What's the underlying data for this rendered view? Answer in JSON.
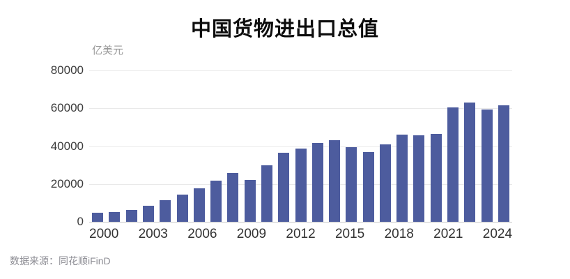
{
  "title": "中国货物进出口总值",
  "unit_label": "亿美元",
  "source": "数据来源：同花顺iFinD",
  "colors": {
    "bar": "#4d5c9e",
    "gridline": "#e9e9e9",
    "axis_line": "#c9c9c9",
    "title_text": "#0d0d0d",
    "tick_text": "#3c3c3c",
    "unit_text": "#999999",
    "source_text": "#8d8d94",
    "background": "#ffffff"
  },
  "chart_data": {
    "type": "bar",
    "title": "中国货物进出口总值",
    "xlabel": "",
    "ylabel": "亿美元",
    "categories": [
      2000,
      2001,
      2002,
      2003,
      2004,
      2005,
      2006,
      2007,
      2008,
      2009,
      2010,
      2011,
      2012,
      2013,
      2014,
      2015,
      2016,
      2017,
      2018,
      2019,
      2020,
      2021,
      2022,
      2023,
      2024
    ],
    "values": [
      4743,
      5097,
      6208,
      8510,
      11546,
      14219,
      17604,
      21766,
      25633,
      22075,
      29740,
      36419,
      38671,
      41590,
      43030,
      39530,
      36856,
      41045,
      46224,
      45761,
      46463,
      60515,
      63096,
      59368,
      61623
    ],
    "ylim": [
      0,
      80000
    ],
    "yticks": [
      0,
      20000,
      40000,
      60000,
      80000
    ],
    "xtick_labels": [
      "2000",
      "2003",
      "2006",
      "2009",
      "2012",
      "2015",
      "2018",
      "2021",
      "2024"
    ],
    "xtick_step": 3,
    "grid": "horizontal",
    "legend_position": "none",
    "bar_color": "#4d5c9e"
  }
}
